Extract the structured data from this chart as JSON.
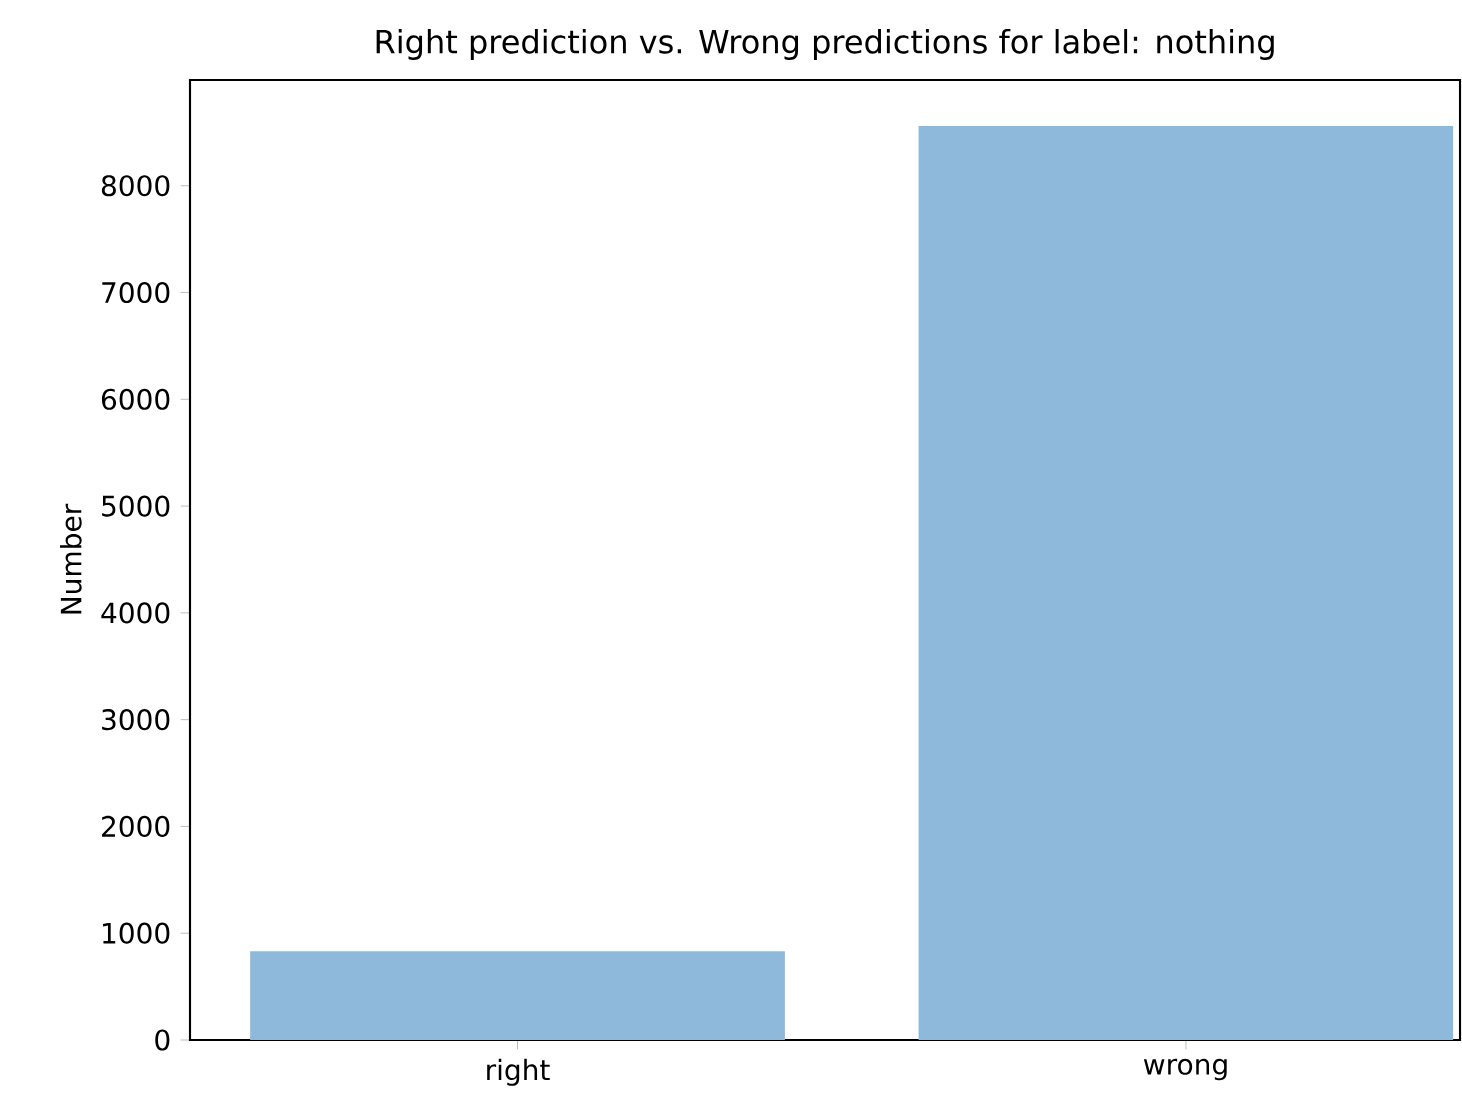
{
  "chart_data": {
    "type": "bar",
    "title": "Right prediction vs. Wrong predictions for label: nothing",
    "ylabel": "Number",
    "categories": [
      "right",
      "wrong"
    ],
    "values": [
      830,
      8560
    ],
    "color": "#8fb9da",
    "ylim": [
      0,
      8990
    ],
    "yticks": [
      0,
      1000,
      2000,
      3000,
      4000,
      5000,
      6000,
      7000,
      8000
    ]
  }
}
